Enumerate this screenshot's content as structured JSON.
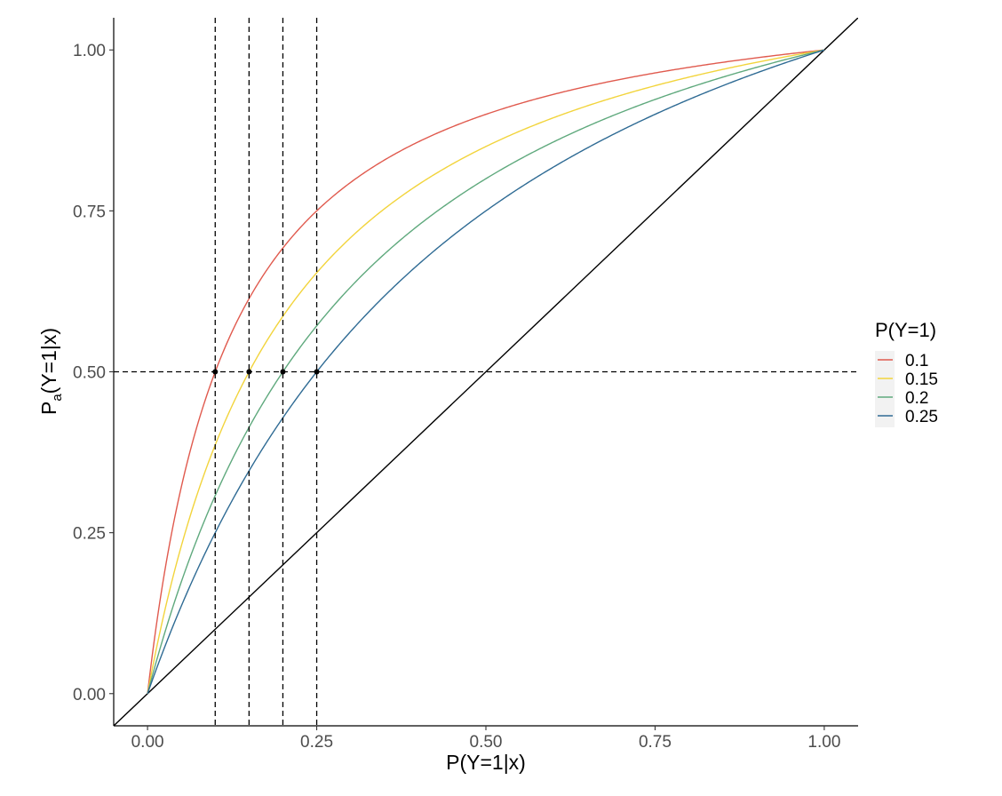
{
  "chart_data": {
    "type": "line",
    "xlabel": "P(Y=1|x)",
    "ylabel": "P",
    "ylabel_sub": "a",
    "ylabel_rest": "(Y=1|x)",
    "xlim": [
      -0.05,
      1.05
    ],
    "ylim": [
      -0.05,
      1.05
    ],
    "x_ticks": [
      0,
      0.25,
      0.5,
      0.75,
      1
    ],
    "x_tick_labels": [
      "0.00",
      "0.25",
      "0.50",
      "0.75",
      "1.00"
    ],
    "y_ticks": [
      0,
      0.25,
      0.5,
      0.75,
      1
    ],
    "y_tick_labels": [
      "0.00",
      "0.25",
      "0.50",
      "0.75",
      "1.00"
    ],
    "grid": false,
    "legend": {
      "title": "P(Y=1)",
      "position": "right",
      "background": "#f2f2f2"
    },
    "series": [
      {
        "name": "0.1",
        "prior": 0.1,
        "color": "#e05a4e"
      },
      {
        "name": "0.15",
        "prior": 0.15,
        "color": "#f2d43c"
      },
      {
        "name": "0.2",
        "prior": 0.2,
        "color": "#5fa97d"
      },
      {
        "name": "0.25",
        "prior": 0.25,
        "color": "#2f6b94"
      }
    ],
    "curve_formula": "Pa = x(1-p) / (x(1-p) + p(1-x))",
    "reference_line": {
      "type": "identity",
      "color": "#000000"
    },
    "hline_dashed": 0.5,
    "vlines_dashed": [
      0.1,
      0.15,
      0.2,
      0.25
    ],
    "points": [
      {
        "x": 0.1,
        "y": 0.5
      },
      {
        "x": 0.15,
        "y": 0.5
      },
      {
        "x": 0.2,
        "y": 0.5
      },
      {
        "x": 0.25,
        "y": 0.5
      }
    ]
  }
}
